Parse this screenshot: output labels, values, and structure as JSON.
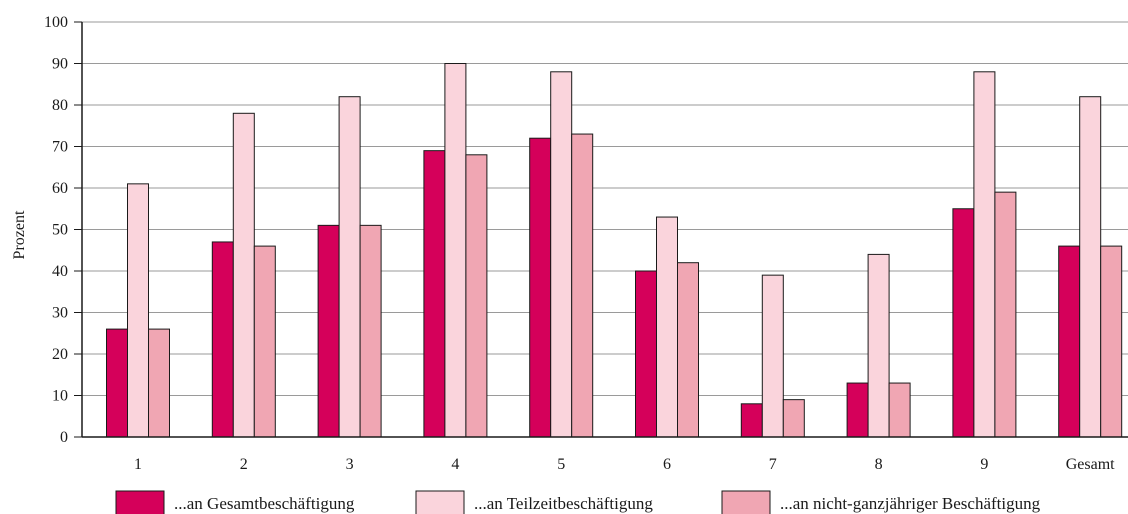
{
  "chart_data": {
    "type": "bar",
    "ylabel": "Prozent",
    "ylim": [
      0,
      100
    ],
    "yticks": [
      0,
      10,
      20,
      30,
      40,
      50,
      60,
      70,
      80,
      90,
      100
    ],
    "grid": true,
    "legend_position": "bottom",
    "categories": [
      "1",
      "2",
      "3",
      "4",
      "5",
      "6",
      "7",
      "8",
      "9",
      "Gesamt"
    ],
    "series": [
      {
        "name": "...an Gesamtbeschäftigung",
        "color": "#d5005a",
        "values": [
          26,
          47,
          51,
          69,
          72,
          40,
          8,
          13,
          55,
          46
        ]
      },
      {
        "name": "...an Teilzeitbeschäftigung",
        "color": "#fad4dc",
        "values": [
          61,
          78,
          82,
          90,
          88,
          53,
          39,
          44,
          88,
          82
        ]
      },
      {
        "name": "...an nicht-ganzjähriger Beschäftigung",
        "color": "#f0a6b3",
        "values": [
          26,
          46,
          51,
          68,
          73,
          42,
          9,
          13,
          59,
          46
        ]
      }
    ]
  }
}
